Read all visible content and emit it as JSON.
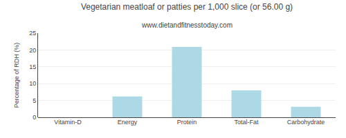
{
  "chart_data": {
    "type": "bar",
    "title": "Vegetarian meatloaf or patties per 1,000 slice (or 56.00 g)",
    "subtitle": "www.dietandfitnesstoday.com",
    "categories": [
      "Vitamin-D",
      "Energy",
      "Protein",
      "Total-Fat",
      "Carbohydrate"
    ],
    "values": [
      0,
      6.2,
      20.9,
      8.0,
      3.1
    ],
    "color": "#add8e6",
    "ylabel": "Percentage of RDH (%)",
    "ylim": [
      0,
      25
    ],
    "yticks": [
      0,
      5,
      10,
      15,
      20,
      25
    ],
    "grid": true
  }
}
